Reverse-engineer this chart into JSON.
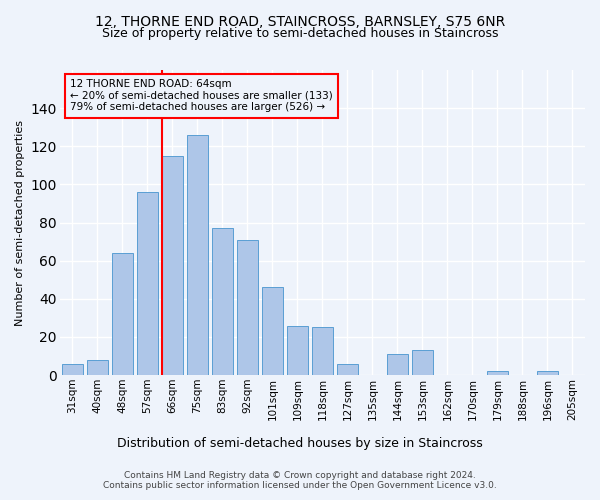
{
  "title": "12, THORNE END ROAD, STAINCROSS, BARNSLEY, S75 6NR",
  "subtitle": "Size of property relative to semi-detached houses in Staincross",
  "xlabel": "Distribution of semi-detached houses by size in Staincross",
  "ylabel": "Number of semi-detached properties",
  "footer1": "Contains HM Land Registry data © Crown copyright and database right 2024.",
  "footer2": "Contains public sector information licensed under the Open Government Licence v3.0.",
  "categories": [
    "31sqm",
    "40sqm",
    "48sqm",
    "57sqm",
    "66sqm",
    "75sqm",
    "83sqm",
    "92sqm",
    "101sqm",
    "109sqm",
    "118sqm",
    "127sqm",
    "135sqm",
    "144sqm",
    "153sqm",
    "162sqm",
    "170sqm",
    "179sqm",
    "188sqm",
    "196sqm",
    "205sqm"
  ],
  "values": [
    6,
    8,
    64,
    96,
    115,
    126,
    77,
    71,
    46,
    26,
    25,
    6,
    0,
    11,
    13,
    0,
    0,
    2,
    0,
    2,
    0
  ],
  "bar_color": "#aec6e8",
  "bar_edge_color": "#5a9fd4",
  "subject_bar_index": 4,
  "subject_line_color": "red",
  "annotation_text": "12 THORNE END ROAD: 64sqm\n← 20% of semi-detached houses are smaller (133)\n79% of semi-detached houses are larger (526) →",
  "annotation_box_color": "red",
  "ylim": [
    0,
    160
  ],
  "yticks": [
    0,
    20,
    40,
    60,
    80,
    100,
    120,
    140
  ],
  "bg_color": "#eef3fb",
  "grid_color": "white",
  "title_fontsize": 10,
  "subtitle_fontsize": 9,
  "ylabel_fontsize": 8,
  "xlabel_fontsize": 9,
  "tick_fontsize": 7.5
}
